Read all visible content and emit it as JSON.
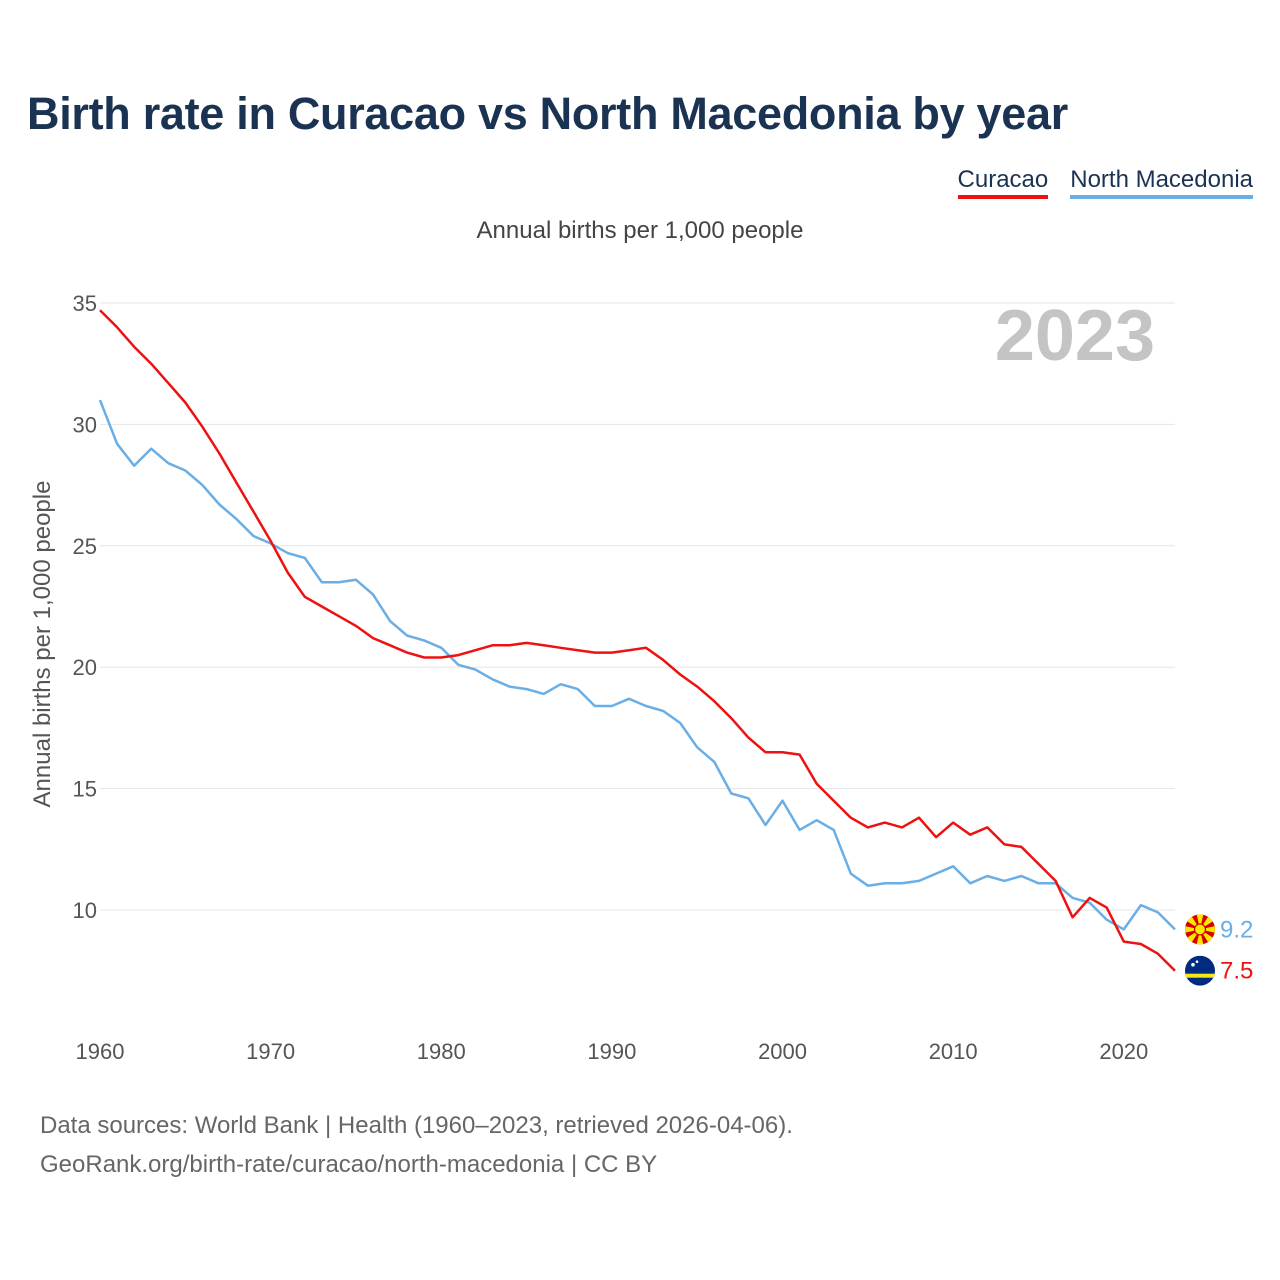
{
  "header": {
    "title": "Birth rate in Curacao vs North Macedonia by year",
    "subtitle": "Annual births per 1,000 people"
  },
  "footer": {
    "source_line": "Data sources: World Bank | Health (1960–2023, retrieved 2026-04-06).",
    "credit_line": "GeoRank.org/birth-rate/curacao/north-macedonia | CC BY"
  },
  "chart_data": {
    "type": "line",
    "title": "Birth rate in Curacao vs North Macedonia by year",
    "subtitle": "Annual births per 1,000 people",
    "xlabel": "",
    "ylabel": "Annual births per 1,000 people",
    "xlim": [
      1960,
      2023
    ],
    "ylim": [
      6,
      35
    ],
    "yticks": [
      10,
      15,
      20,
      25,
      30,
      35
    ],
    "xticks": [
      1960,
      1970,
      1980,
      1990,
      2000,
      2010,
      2020
    ],
    "grid": true,
    "legend_position": "top-right",
    "current_year_label": "2023",
    "x": [
      1960,
      1961,
      1962,
      1963,
      1964,
      1965,
      1966,
      1967,
      1968,
      1969,
      1970,
      1971,
      1972,
      1973,
      1974,
      1975,
      1976,
      1977,
      1978,
      1979,
      1980,
      1981,
      1982,
      1983,
      1984,
      1985,
      1986,
      1987,
      1988,
      1989,
      1990,
      1991,
      1992,
      1993,
      1994,
      1995,
      1996,
      1997,
      1998,
      1999,
      2000,
      2001,
      2002,
      2003,
      2004,
      2005,
      2006,
      2007,
      2008,
      2009,
      2010,
      2011,
      2012,
      2013,
      2014,
      2015,
      2016,
      2017,
      2018,
      2019,
      2020,
      2021,
      2022,
      2023
    ],
    "series": [
      {
        "name": "Curacao",
        "color": "#ee1111",
        "end_label": "7.5",
        "flag": "curacao",
        "values": [
          34.7,
          34.0,
          33.2,
          32.5,
          31.7,
          30.9,
          29.9,
          28.8,
          27.6,
          26.4,
          25.2,
          23.9,
          22.9,
          22.5,
          22.1,
          21.7,
          21.2,
          20.9,
          20.6,
          20.4,
          20.4,
          20.5,
          20.7,
          20.9,
          20.9,
          21.0,
          20.9,
          20.8,
          20.7,
          20.6,
          20.6,
          20.7,
          20.8,
          20.3,
          19.7,
          19.2,
          18.6,
          17.9,
          17.1,
          16.5,
          16.5,
          16.4,
          15.2,
          14.5,
          13.8,
          13.4,
          13.6,
          13.4,
          13.8,
          13.0,
          13.6,
          13.1,
          13.4,
          12.7,
          12.6,
          11.9,
          11.2,
          9.7,
          10.5,
          10.1,
          8.7,
          8.6,
          8.2,
          7.5
        ]
      },
      {
        "name": "North Macedonia",
        "color": "#6aaee6",
        "end_label": "9.2",
        "flag": "north-macedonia",
        "values": [
          31.0,
          29.2,
          28.3,
          29.0,
          28.4,
          28.1,
          27.5,
          26.7,
          26.1,
          25.4,
          25.1,
          24.7,
          24.5,
          23.5,
          23.5,
          23.6,
          23.0,
          21.9,
          21.3,
          21.1,
          20.8,
          20.1,
          19.9,
          19.5,
          19.2,
          19.1,
          18.9,
          19.3,
          19.1,
          18.4,
          18.4,
          18.7,
          18.4,
          18.2,
          17.7,
          16.7,
          16.1,
          14.8,
          14.6,
          13.5,
          14.5,
          13.3,
          13.7,
          13.3,
          11.5,
          11.0,
          11.1,
          11.1,
          11.2,
          11.5,
          11.8,
          11.1,
          11.4,
          11.2,
          11.4,
          11.1,
          11.1,
          10.5,
          10.3,
          9.6,
          9.2,
          10.2,
          9.9,
          9.2
        ]
      }
    ]
  }
}
